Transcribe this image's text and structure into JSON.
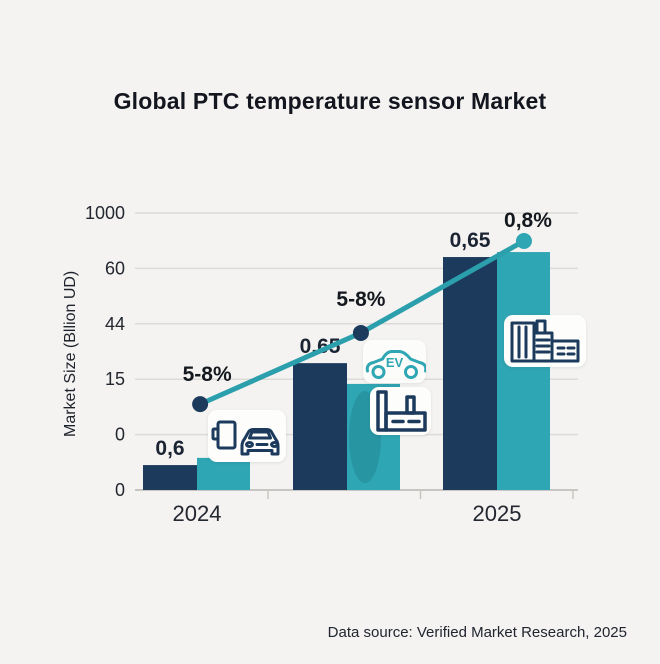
{
  "title": "Global PTC temperature sensor Market",
  "footer": "Data source: Verified Market Research, 2025",
  "colors": {
    "background": "#f4f3f1",
    "navy": "#1c3a5c",
    "teal": "#2fa6b3",
    "line": "#2c9fad",
    "grid": "#dcdbd7",
    "axis": "#c7c6c2",
    "text": "#14161f"
  },
  "chart_data": {
    "type": "bar",
    "title": "Global PTC temperature sensor Market",
    "ylabel": "Market Size (Bllion UD)",
    "y_tick_labels": [
      "1000",
      "60",
      "44",
      "15",
      "0",
      "0"
    ],
    "categories": [
      "2024",
      "",
      "2025"
    ],
    "grid": true,
    "legend": "none",
    "series": [
      {
        "name": "market-size-navy",
        "color": "#1c3a5c",
        "value_labels": [
          "0,6",
          "0,65",
          "0,65"
        ],
        "heights_frac": [
          0.09,
          0.458,
          0.841
        ]
      },
      {
        "name": "market-size-teal",
        "color": "#2fa6b3",
        "value_labels": [
          "",
          "",
          ""
        ],
        "heights_frac": [
          0.116,
          0.383,
          0.859
        ]
      }
    ],
    "growth_line": {
      "color": "#2c9fad",
      "labels": [
        "5-8%",
        "5-8%",
        "0,8%"
      ],
      "points_frac": [
        [
          0.147,
          0.69
        ],
        [
          0.51,
          0.433
        ],
        [
          0.878,
          0.101
        ]
      ],
      "dot_colors": [
        "#1c3a5c",
        "#1c3a5c",
        "#2fa6b3"
      ]
    },
    "icons": [
      {
        "name": "car-and-charger-icon"
      },
      {
        "name": "ev-car-icon",
        "text": "EV"
      },
      {
        "name": "factory-icon"
      },
      {
        "name": "industrial-plant-icon"
      }
    ],
    "source_note": "Data source: Verified Market Research, 2025"
  }
}
